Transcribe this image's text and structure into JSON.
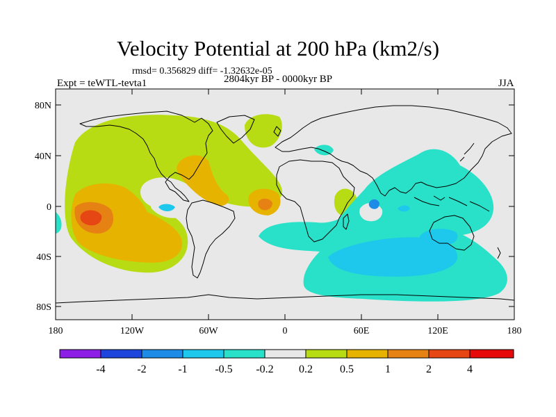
{
  "figure": {
    "title": "Velocity Potential at 200 hPa (km2/s)",
    "stats": "rmsd= 0.356829 diff= -1.32632e-05",
    "period": "2804kyr BP - 0000kyr BP",
    "experiment": "Expt = teWTL-tevta1",
    "season": "JJA"
  },
  "axes": {
    "lat_labels": [
      "80N",
      "40N",
      "0",
      "40S",
      "80S"
    ],
    "lon_labels": [
      "180",
      "120W",
      "60W",
      "0",
      "60E",
      "120E",
      "180"
    ]
  },
  "colorbar": {
    "bin_colors": [
      "#8c1ee6",
      "#1e46dc",
      "#1e8ce6",
      "#1ec8ec",
      "#28e1c8",
      "#e8e8e8",
      "#b8dc14",
      "#e6b400",
      "#e68214",
      "#e64614",
      "#e60a0a"
    ],
    "labels": [
      "-4",
      "-2",
      "-1",
      "-0.5",
      "-0.2",
      "0.2",
      "0.5",
      "1",
      "2",
      "4"
    ]
  }
}
